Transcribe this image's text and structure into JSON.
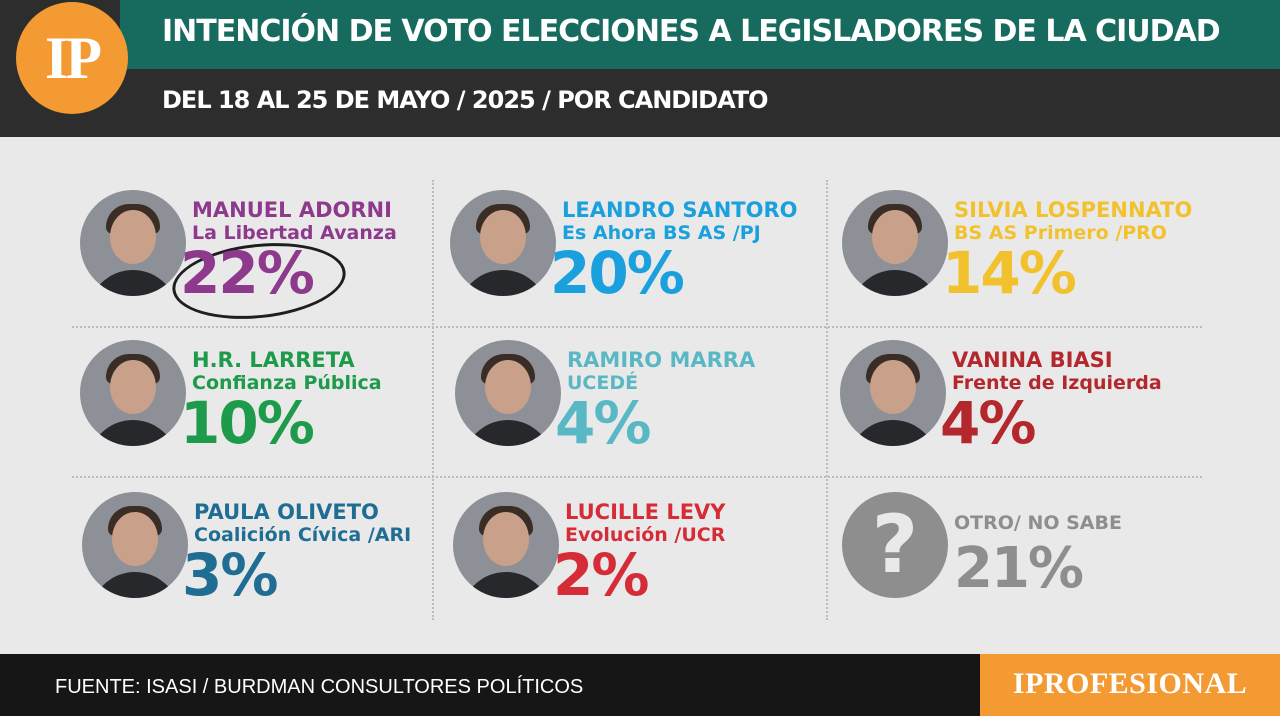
{
  "header": {
    "title": "INTENCIÓN DE VOTO ELECCIONES A LEGISLADORES DE LA CIUDAD",
    "subtitle": "DEL 18 AL 25 DE MAYO / 2025 / POR CANDIDATO",
    "logo": "IP"
  },
  "footer": {
    "source": "FUENTE: ISASI / BURDMAN CONSULTORES POLÍTICOS",
    "brand": "IPROFESIONAL"
  },
  "chart_data": {
    "type": "table",
    "title": "INTENCIÓN DE VOTO ELECCIONES A LEGISLADORES DE LA CIUDAD",
    "subtitle": "DEL 18 AL 25 DE MAYO / 2025 / POR CANDIDATO",
    "unit": "%",
    "entries": [
      {
        "name": "MANUEL ADORNI",
        "party": "La Libertad Avanza",
        "value": 22,
        "label": "22%",
        "color": "#8e3a8c",
        "circled": true
      },
      {
        "name": "LEANDRO SANTORO",
        "party": "Es Ahora BS AS /PJ",
        "value": 20,
        "label": "20%",
        "color": "#1aa0dc"
      },
      {
        "name": "SILVIA LOSPENNATO",
        "party": "BS AS Primero /PRO",
        "value": 14,
        "label": "14%",
        "color": "#f2c12e"
      },
      {
        "name": "H.R. LARRETA",
        "party": "Confianza Pública",
        "value": 10,
        "label": "10%",
        "color": "#1d9a4a"
      },
      {
        "name": "RAMIRO MARRA",
        "party": "UCEDÉ",
        "value": 4,
        "label": "4%",
        "color": "#5ab8c4"
      },
      {
        "name": "VANINA BIASI",
        "party": "Frente de Izquierda",
        "value": 4,
        "label": "4%",
        "color": "#b3272d"
      },
      {
        "name": "PAULA OLIVETO",
        "party": "Coalición Cívica /ARI",
        "value": 3,
        "label": "3%",
        "color": "#1f6d93"
      },
      {
        "name": "LUCILLE LEVY",
        "party": "Evolución /UCR",
        "value": 2,
        "label": "2%",
        "color": "#d62c38"
      },
      {
        "name": "OTRO/ NO SABE",
        "party": "",
        "value": 21,
        "label": "21%",
        "color": "#8e8e8e",
        "unknown": true
      }
    ]
  }
}
